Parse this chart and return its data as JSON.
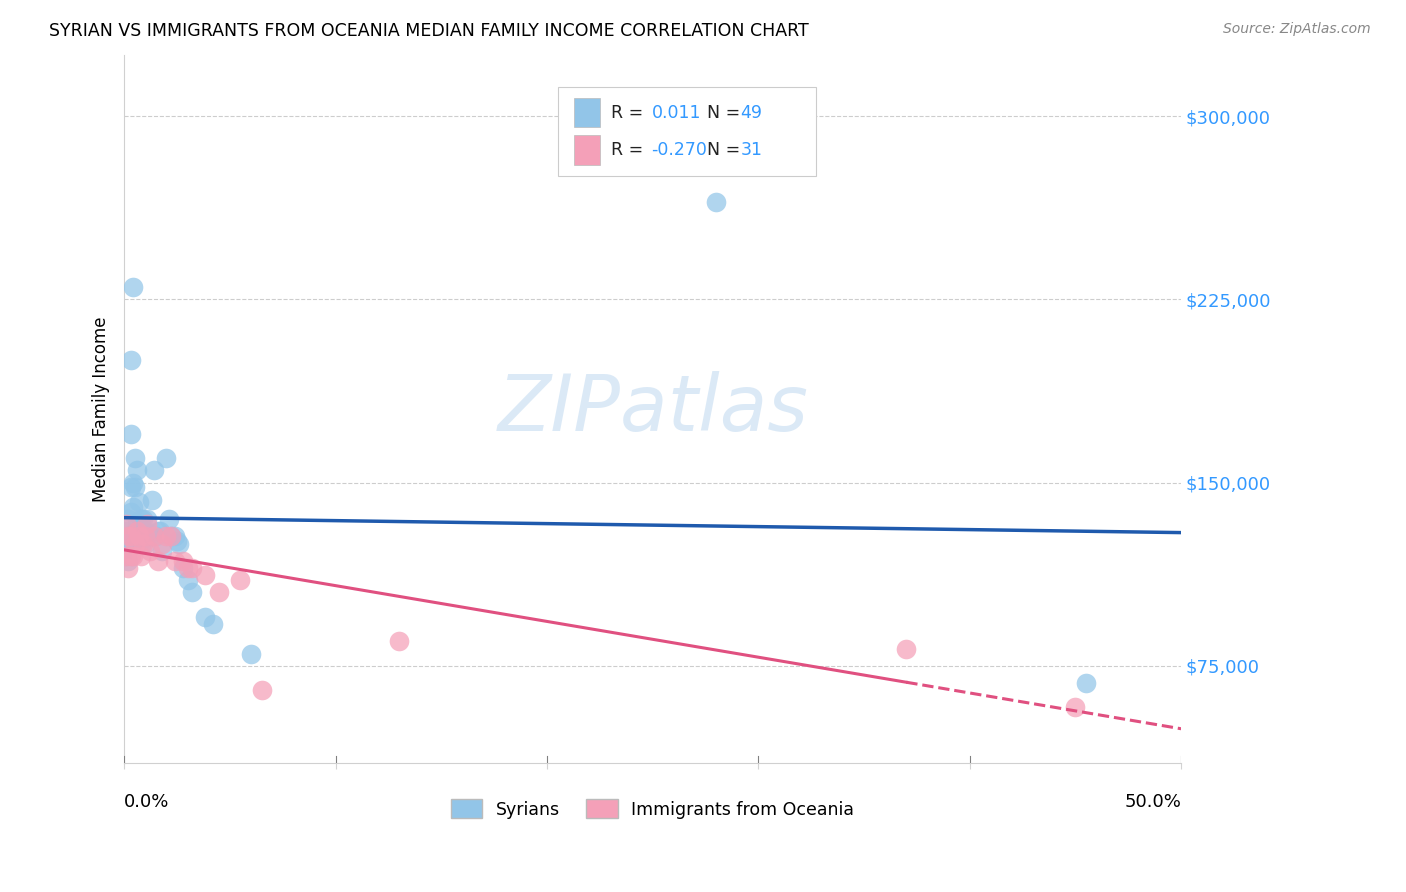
{
  "title": "SYRIAN VS IMMIGRANTS FROM OCEANIA MEDIAN FAMILY INCOME CORRELATION CHART",
  "source": "Source: ZipAtlas.com",
  "ylabel": "Median Family Income",
  "yticks": [
    75000,
    150000,
    225000,
    300000
  ],
  "ytick_labels": [
    "$75,000",
    "$150,000",
    "$225,000",
    "$300,000"
  ],
  "xlim": [
    0.0,
    0.5
  ],
  "ylim": [
    35000,
    325000
  ],
  "legend_label1": "Syrians",
  "legend_label2": "Immigrants from Oceania",
  "r1": "0.011",
  "n1": "49",
  "r2": "-0.270",
  "n2": "31",
  "blue_color": "#92C5E8",
  "pink_color": "#F4A0B8",
  "line_blue": "#1f5aad",
  "line_pink": "#E05080",
  "syrians_x": [
    0.001,
    0.001,
    0.001,
    0.002,
    0.002,
    0.002,
    0.002,
    0.003,
    0.003,
    0.003,
    0.003,
    0.004,
    0.004,
    0.004,
    0.005,
    0.005,
    0.005,
    0.006,
    0.006,
    0.007,
    0.007,
    0.008,
    0.008,
    0.009,
    0.009,
    0.01,
    0.01,
    0.011,
    0.012,
    0.013,
    0.014,
    0.015,
    0.016,
    0.017,
    0.018,
    0.02,
    0.021,
    0.022,
    0.024,
    0.025,
    0.026,
    0.028,
    0.03,
    0.032,
    0.038,
    0.042,
    0.06,
    0.28,
    0.455
  ],
  "syrians_y": [
    130000,
    125000,
    120000,
    135000,
    128000,
    122000,
    118000,
    200000,
    170000,
    148000,
    138000,
    230000,
    150000,
    140000,
    160000,
    148000,
    128000,
    155000,
    133000,
    142000,
    130000,
    135000,
    125000,
    135000,
    127000,
    130000,
    125000,
    135000,
    128000,
    143000,
    155000,
    128000,
    130000,
    130000,
    122000,
    160000,
    135000,
    128000,
    128000,
    126000,
    125000,
    115000,
    110000,
    105000,
    95000,
    92000,
    80000,
    265000,
    68000
  ],
  "oceania_x": [
    0.001,
    0.001,
    0.002,
    0.002,
    0.003,
    0.003,
    0.004,
    0.005,
    0.006,
    0.007,
    0.008,
    0.009,
    0.01,
    0.011,
    0.012,
    0.014,
    0.016,
    0.018,
    0.02,
    0.022,
    0.024,
    0.028,
    0.03,
    0.032,
    0.038,
    0.045,
    0.055,
    0.065,
    0.13,
    0.37,
    0.45
  ],
  "oceania_y": [
    133000,
    120000,
    128000,
    115000,
    128000,
    120000,
    120000,
    125000,
    130000,
    128000,
    120000,
    125000,
    128000,
    133000,
    122000,
    128000,
    118000,
    125000,
    128000,
    128000,
    118000,
    118000,
    115000,
    115000,
    112000,
    105000,
    110000,
    65000,
    85000,
    82000,
    58000
  ]
}
